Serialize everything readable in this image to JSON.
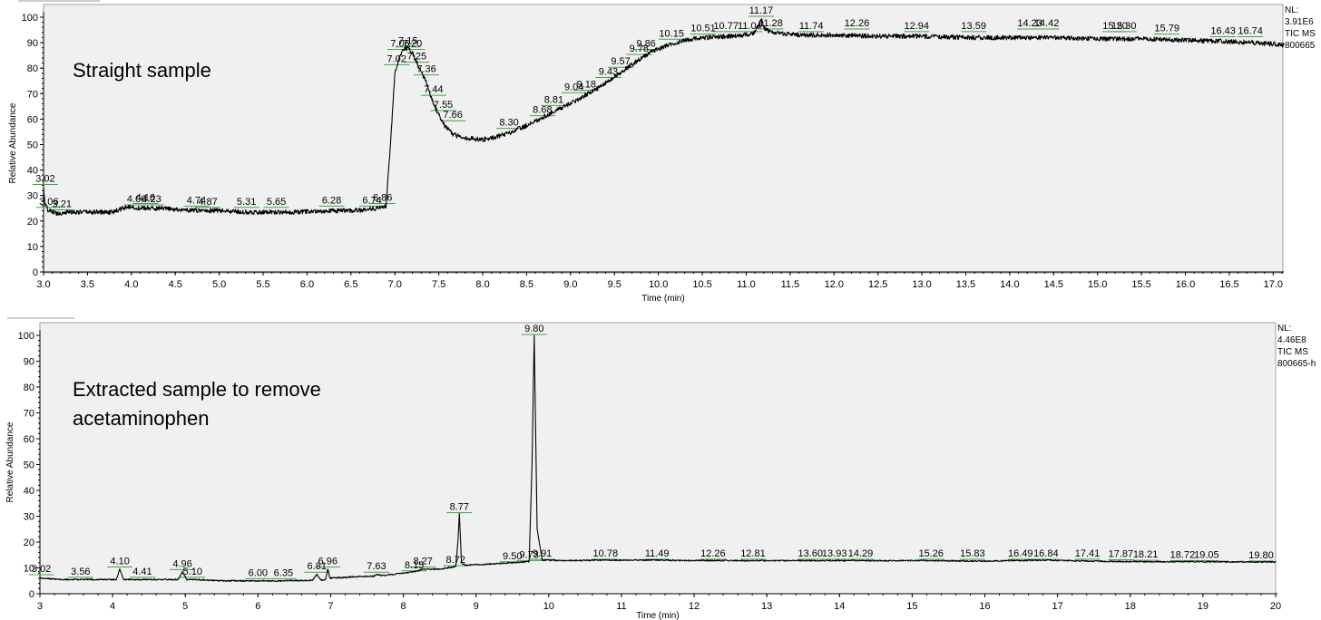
{
  "chart_data": [
    {
      "type": "line",
      "title": "Straight sample",
      "xlabel": "Time (min)",
      "ylabel": "Relative Abundance",
      "xlim": [
        3.0,
        17.1
      ],
      "ylim": [
        0,
        100
      ],
      "x_ticks": [
        "3.0",
        "3.5",
        "4.0",
        "4.5",
        "5.0",
        "5.5",
        "6.0",
        "6.5",
        "7.0",
        "7.5",
        "8.0",
        "8.5",
        "9.0",
        "9.5",
        "10.0",
        "10.5",
        "11.0",
        "11.5",
        "12.0",
        "12.5",
        "13.0",
        "13.5",
        "14.0",
        "14.5",
        "15.0",
        "15.5",
        "16.0",
        "16.5",
        "17.0"
      ],
      "y_ticks": [
        "0",
        "10",
        "20",
        "30",
        "40",
        "50",
        "60",
        "70",
        "80",
        "90",
        "100"
      ],
      "annotations": [
        "NL:",
        "3.91E6",
        "TIC  MS",
        "800665"
      ],
      "series": [
        {
          "x": [
            3.0,
            3.02,
            3.06,
            3.15,
            3.3,
            3.5,
            3.8,
            3.9,
            4.0,
            4.1,
            4.3,
            4.5,
            4.8,
            5.0,
            5.3,
            5.6,
            5.9,
            6.2,
            6.5,
            6.8,
            6.9,
            6.95,
            7.0,
            7.06,
            7.1,
            7.15,
            7.2,
            7.25,
            7.36,
            7.44,
            7.55,
            7.66,
            7.8,
            8.0,
            8.15,
            8.3,
            8.5,
            8.7,
            8.9,
            9.1,
            9.3,
            9.5,
            9.7,
            9.9,
            10.1,
            10.3,
            10.5,
            10.8,
            11.0,
            11.1,
            11.17,
            11.22,
            11.3,
            11.6,
            12.0,
            12.5,
            13.0,
            13.5,
            14.0,
            14.5,
            15.0,
            15.5,
            16.0,
            16.5,
            17.0,
            17.12
          ],
          "y": [
            33,
            26,
            24,
            23,
            23.5,
            23.5,
            23.5,
            25,
            25.5,
            25,
            25,
            24.5,
            24,
            24,
            23.5,
            23.5,
            23.5,
            24,
            24,
            25,
            26,
            50,
            78,
            85,
            87,
            88,
            86,
            82,
            74,
            66,
            58,
            54,
            52.5,
            52,
            53,
            54.5,
            57.5,
            61,
            64.5,
            68,
            72,
            76.5,
            81.5,
            86,
            89,
            91,
            92,
            92.5,
            93,
            94,
            99,
            95,
            94,
            93,
            93,
            92.5,
            92.5,
            92,
            92,
            92,
            91.5,
            91.5,
            91,
            90.5,
            89.5,
            89
          ]
        }
      ],
      "peak_labels": [
        {
          "t": 3.02,
          "label": "3.02",
          "y": 34
        },
        {
          "t": 3.06,
          "label": "3.06",
          "y": 25
        },
        {
          "t": 3.21,
          "label": "3.21",
          "y": 24
        },
        {
          "t": 4.06,
          "label": "4.06",
          "y": 26
        },
        {
          "t": 4.16,
          "label": "4.16",
          "y": 26.5
        },
        {
          "t": 4.23,
          "label": "4.23",
          "y": 26
        },
        {
          "t": 4.74,
          "label": "4.74",
          "y": 25.5
        },
        {
          "t": 4.87,
          "label": "4.87",
          "y": 25
        },
        {
          "t": 5.31,
          "label": "5.31",
          "y": 25
        },
        {
          "t": 5.65,
          "label": "5.65",
          "y": 25
        },
        {
          "t": 6.28,
          "label": "6.28",
          "y": 25.5
        },
        {
          "t": 6.74,
          "label": "6.74",
          "y": 25.5
        },
        {
          "t": 6.86,
          "label": "6.86",
          "y": 26.5
        },
        {
          "t": 7.02,
          "label": "7.02",
          "y": 81
        },
        {
          "t": 7.06,
          "label": "7.06",
          "y": 87
        },
        {
          "t": 7.15,
          "label": "7.15",
          "y": 88
        },
        {
          "t": 7.2,
          "label": "7.20",
          "y": 87
        },
        {
          "t": 7.25,
          "label": "7.25",
          "y": 82
        },
        {
          "t": 7.36,
          "label": "7.36",
          "y": 77
        },
        {
          "t": 7.44,
          "label": "7.44",
          "y": 69
        },
        {
          "t": 7.55,
          "label": "7.55",
          "y": 63
        },
        {
          "t": 7.66,
          "label": "7.66",
          "y": 59
        },
        {
          "t": 8.3,
          "label": "8.30",
          "y": 56
        },
        {
          "t": 8.68,
          "label": "8.68",
          "y": 61
        },
        {
          "t": 8.81,
          "label": "8.81",
          "y": 65
        },
        {
          "t": 9.04,
          "label": "9.04",
          "y": 70
        },
        {
          "t": 9.18,
          "label": "9.18",
          "y": 71
        },
        {
          "t": 9.43,
          "label": "9.43",
          "y": 76
        },
        {
          "t": 9.57,
          "label": "9.57",
          "y": 80
        },
        {
          "t": 9.78,
          "label": "9.78",
          "y": 85
        },
        {
          "t": 9.86,
          "label": "9.86",
          "y": 87
        },
        {
          "t": 10.15,
          "label": "10.15",
          "y": 91
        },
        {
          "t": 10.51,
          "label": "10.51",
          "y": 93
        },
        {
          "t": 10.77,
          "label": "10.77",
          "y": 94
        },
        {
          "t": 11.04,
          "label": "11.04",
          "y": 94
        },
        {
          "t": 11.17,
          "label": "11.17",
          "y": 100
        },
        {
          "t": 11.28,
          "label": "11.28",
          "y": 95
        },
        {
          "t": 11.74,
          "label": "11.74",
          "y": 94
        },
        {
          "t": 12.26,
          "label": "12.26",
          "y": 95
        },
        {
          "t": 12.94,
          "label": "12.94",
          "y": 94
        },
        {
          "t": 13.59,
          "label": "13.59",
          "y": 94
        },
        {
          "t": 14.23,
          "label": "14.23",
          "y": 95
        },
        {
          "t": 14.42,
          "label": "14.42",
          "y": 95
        },
        {
          "t": 15.2,
          "label": "15.20",
          "y": 94
        },
        {
          "t": 15.3,
          "label": "15.30",
          "y": 94
        },
        {
          "t": 15.79,
          "label": "15.79",
          "y": 93
        },
        {
          "t": 16.43,
          "label": "16.43",
          "y": 92
        },
        {
          "t": 16.74,
          "label": "16.74",
          "y": 92
        }
      ]
    },
    {
      "type": "line",
      "title": "Extracted sample to remove acetaminophen",
      "title_lines": [
        "Extracted sample to remove",
        "acetaminophen"
      ],
      "xlabel": "Time (min)",
      "ylabel": "Relative Abundance",
      "xlim": [
        3,
        20
      ],
      "ylim": [
        0,
        100
      ],
      "x_ticks": [
        "3",
        "4",
        "5",
        "6",
        "7",
        "8",
        "9",
        "10",
        "11",
        "12",
        "13",
        "14",
        "15",
        "16",
        "17",
        "18",
        "19",
        "20"
      ],
      "y_ticks": [
        "0",
        "10",
        "20",
        "30",
        "40",
        "50",
        "60",
        "70",
        "80",
        "90",
        "100"
      ],
      "annotations": [
        "NL:",
        "4.46E8",
        "TIC  MS",
        "800665-h"
      ],
      "series": [
        {
          "x": [
            3.0,
            3.02,
            3.3,
            3.56,
            3.8,
            4.05,
            4.1,
            4.15,
            4.41,
            4.9,
            4.96,
            5.02,
            5.1,
            5.5,
            6.0,
            6.35,
            6.75,
            6.81,
            6.87,
            6.93,
            6.96,
            6.99,
            7.3,
            7.6,
            7.63,
            7.7,
            8.15,
            8.27,
            8.5,
            8.72,
            8.75,
            8.77,
            8.8,
            8.85,
            9.2,
            9.5,
            9.73,
            9.77,
            9.8,
            9.84,
            9.91,
            10.2,
            10.78,
            11.49,
            12.26,
            12.81,
            13.6,
            14.29,
            15.26,
            16.0,
            16.84,
            17.5,
            18.21,
            19.05,
            19.8,
            20.0
          ],
          "y": [
            6,
            6,
            5.5,
            5.5,
            5.5,
            5.5,
            9.5,
            5.5,
            5.5,
            5.5,
            8.5,
            5.5,
            5.5,
            5,
            5,
            5,
            5.2,
            7.5,
            5.2,
            5.5,
            9.5,
            6,
            6.5,
            6.8,
            7.5,
            7,
            8.5,
            9.5,
            9.5,
            10.5,
            20,
            31,
            12,
            11,
            11.5,
            12,
            12.5,
            50,
            100,
            25,
            13,
            12.8,
            13,
            13,
            12.8,
            12.8,
            12.8,
            12.8,
            12.8,
            12.6,
            13,
            12.6,
            12.4,
            12.4,
            12.3,
            12.3
          ]
        }
      ],
      "peak_labels": [
        {
          "t": 3.02,
          "label": "3.02",
          "y": 7
        },
        {
          "t": 3.56,
          "label": "3.56",
          "y": 6
        },
        {
          "t": 4.1,
          "label": "4.10",
          "y": 10
        },
        {
          "t": 4.41,
          "label": "4.41",
          "y": 6
        },
        {
          "t": 4.96,
          "label": "4.96",
          "y": 9
        },
        {
          "t": 5.1,
          "label": "5.10",
          "y": 6
        },
        {
          "t": 6.0,
          "label": "6.00",
          "y": 5.5
        },
        {
          "t": 6.35,
          "label": "6.35",
          "y": 5.5
        },
        {
          "t": 6.81,
          "label": "6.81",
          "y": 8
        },
        {
          "t": 6.96,
          "label": "6.96",
          "y": 10
        },
        {
          "t": 7.63,
          "label": "7.63",
          "y": 8
        },
        {
          "t": 8.15,
          "label": "8.15",
          "y": 8.5
        },
        {
          "t": 8.27,
          "label": "8.27",
          "y": 10
        },
        {
          "t": 8.72,
          "label": "8.72",
          "y": 10.5
        },
        {
          "t": 8.77,
          "label": "8.77",
          "y": 31
        },
        {
          "t": 9.5,
          "label": "9.50",
          "y": 12
        },
        {
          "t": 9.73,
          "label": "9.73",
          "y": 12.5
        },
        {
          "t": 9.8,
          "label": "9.80",
          "y": 100
        },
        {
          "t": 9.91,
          "label": "9.91",
          "y": 13
        },
        {
          "t": 10.78,
          "label": "10.78",
          "y": 13
        },
        {
          "t": 11.49,
          "label": "11.49",
          "y": 13
        },
        {
          "t": 12.26,
          "label": "12.26",
          "y": 13
        },
        {
          "t": 12.81,
          "label": "12.81",
          "y": 13
        },
        {
          "t": 13.6,
          "label": "13.60",
          "y": 13
        },
        {
          "t": 13.93,
          "label": "13.93",
          "y": 13
        },
        {
          "t": 14.29,
          "label": "14.29",
          "y": 13
        },
        {
          "t": 15.26,
          "label": "15.26",
          "y": 13
        },
        {
          "t": 15.83,
          "label": "15.83",
          "y": 13
        },
        {
          "t": 16.49,
          "label": "16.49",
          "y": 13
        },
        {
          "t": 16.84,
          "label": "16.84",
          "y": 13
        },
        {
          "t": 17.41,
          "label": "17.41",
          "y": 13
        },
        {
          "t": 17.87,
          "label": "17.87",
          "y": 12.8
        },
        {
          "t": 18.21,
          "label": "18.21",
          "y": 12.6
        },
        {
          "t": 18.72,
          "label": "18.72",
          "y": 12.5
        },
        {
          "t": 19.05,
          "label": "19.05",
          "y": 12.4
        },
        {
          "t": 19.8,
          "label": "19.80",
          "y": 12.3
        }
      ]
    }
  ]
}
